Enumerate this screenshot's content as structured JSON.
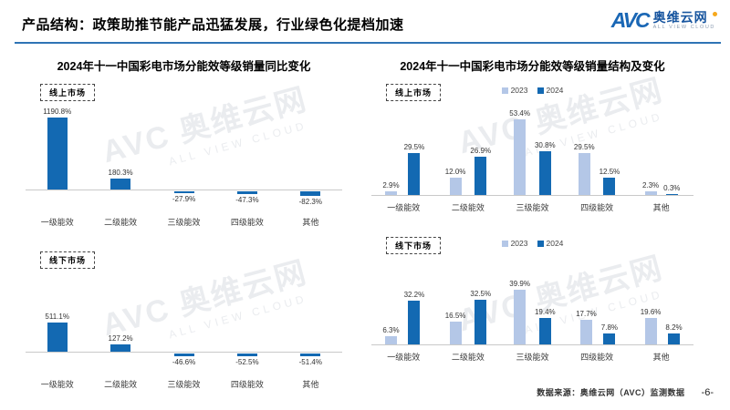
{
  "header": {
    "title": "产品结构：政策助推节能产品迅猛发展，行业绿色化提档加速",
    "logo": {
      "abbr": "AVC",
      "cn": "奥维云网",
      "en": "ALL VIEW CLOUD"
    }
  },
  "sections": [
    {
      "title": "2024年十一中国彩电市场分能效等级销量同比变化"
    },
    {
      "title": "2024年十一中国彩电市场分能效等级销量结构及变化"
    }
  ],
  "chart_data": [
    {
      "type": "bar",
      "title": "2024年十一中国彩电市场分能效等级销量同比变化",
      "market": "线上市场",
      "categories": [
        "一级能效",
        "二级能效",
        "三级能效",
        "四级能效",
        "其他"
      ],
      "values": [
        1190.8,
        180.3,
        -27.9,
        -47.3,
        -82.3
      ],
      "value_labels": [
        "1190.8%",
        "180.3%",
        "-27.9%",
        "-47.3%",
        "-82.3%"
      ],
      "unit": "%",
      "baseline": 0,
      "grid": false,
      "ylim": [
        -100,
        1250
      ]
    },
    {
      "type": "bar",
      "title": "2024年十一中国彩电市场分能效等级销量同比变化",
      "market": "线下市场",
      "categories": [
        "一级能效",
        "二级能效",
        "三级能效",
        "四级能效",
        "其他"
      ],
      "values": [
        511.1,
        127.2,
        -46.6,
        -52.5,
        -51.4
      ],
      "value_labels": [
        "511.1%",
        "127.2%",
        "-46.6%",
        "-52.5%",
        "-51.4%"
      ],
      "unit": "%",
      "baseline": 0,
      "grid": false,
      "ylim": [
        -100,
        550
      ]
    },
    {
      "type": "grouped_bar",
      "title": "2024年十一中国彩电市场分能效等级销量结构及变化",
      "market": "线上市场",
      "categories": [
        "一级能效",
        "二级能效",
        "三级能效",
        "四级能效",
        "其他"
      ],
      "legend": [
        "2023",
        "2024"
      ],
      "legend_position": "top",
      "series": [
        {
          "name": "2023",
          "values": [
            2.9,
            12.0,
            53.4,
            29.5,
            2.3
          ],
          "labels": [
            "2.9%",
            "12.0%",
            "53.4%",
            "29.5%",
            "2.3%"
          ]
        },
        {
          "name": "2024",
          "values": [
            29.5,
            26.9,
            30.8,
            12.5,
            0.3
          ],
          "labels": [
            "29.5%",
            "26.9%",
            "30.8%",
            "12.5%",
            "0.3%"
          ]
        }
      ],
      "unit": "%",
      "grid": false,
      "ylim": [
        0,
        60
      ]
    },
    {
      "type": "grouped_bar",
      "title": "2024年十一中国彩电市场分能效等级销量结构及变化",
      "market": "线下市场",
      "categories": [
        "一级能效",
        "二级能效",
        "三级能效",
        "四级能效",
        "其他"
      ],
      "legend": [
        "2023",
        "2024"
      ],
      "legend_position": "top",
      "series": [
        {
          "name": "2023",
          "values": [
            6.3,
            16.5,
            39.9,
            17.7,
            19.6
          ],
          "labels": [
            "6.3%",
            "16.5%",
            "39.9%",
            "17.7%",
            "19.6%"
          ]
        },
        {
          "name": "2024",
          "values": [
            32.2,
            32.5,
            19.4,
            7.8,
            8.2
          ],
          "labels": [
            "32.2%",
            "32.5%",
            "19.4%",
            "7.8%",
            "8.2%"
          ]
        }
      ],
      "unit": "%",
      "grid": false,
      "ylim": [
        0,
        45
      ]
    }
  ],
  "footer": {
    "source": "数据来源：奥维云网（AVC）监测数据",
    "page": "-6-"
  },
  "watermark": {
    "main": "AVC 奥维云网",
    "sub": "ALL VIEW CLOUD"
  },
  "colors": {
    "bar_dark": "#1369b2",
    "bar_light": "#b4c7e7",
    "header_line": "#2e74b5",
    "axis": "#c9c9c9"
  }
}
